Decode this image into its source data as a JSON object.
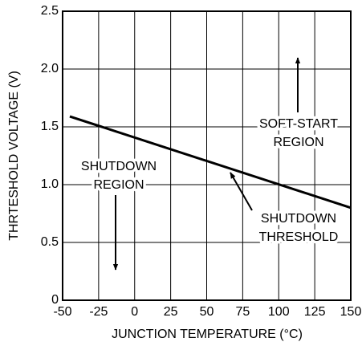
{
  "chart_data": {
    "type": "line",
    "x_label": "JUNCTION TEMPERATURE (°C)",
    "y_label": "THRTESHOLD VOLTAGE (V)",
    "x": [
      -45,
      150
    ],
    "values": [
      1.59,
      0.8
    ],
    "color": "#000000",
    "xlim": [
      -50,
      150
    ],
    "xticks": [
      -50,
      -25,
      0,
      25,
      50,
      75,
      100,
      125,
      150
    ],
    "ylim": [
      0,
      2.5
    ],
    "yticks": [
      0,
      0.5,
      {
        "value": 1,
        "label": "1.0"
      },
      1.5,
      {
        "value": 2,
        "label": "2.0"
      },
      2.5
    ],
    "grid": true,
    "annotations": [
      {
        "lines": [
          "SOFT-START",
          "REGION"
        ]
      },
      {
        "lines": [
          "SHUTDOWN",
          "REGION"
        ]
      },
      {
        "lines": [
          "SHUTDOWN",
          "THRESHOLD"
        ]
      }
    ]
  }
}
